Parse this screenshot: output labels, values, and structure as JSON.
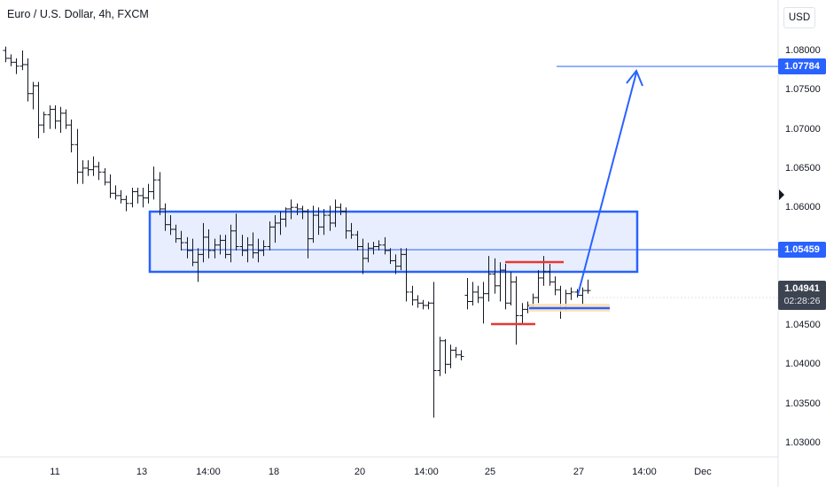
{
  "header": {
    "title": "Euro / U.S. Dollar, 4h, FXCM"
  },
  "price_scale": {
    "currency": "USD",
    "ticks": [
      "1.08000",
      "1.07500",
      "1.07000",
      "1.06500",
      "1.06000",
      "1.05500",
      "1.05000",
      "1.04500",
      "1.04000",
      "1.03500",
      "1.03000"
    ],
    "target_tag": "1.07784",
    "level_tag": "1.05459",
    "current_price": "1.04941",
    "countdown": "02:28:26"
  },
  "time_axis": {
    "labels": [
      "11",
      "13",
      "14:00",
      "18",
      "20",
      "14:00",
      "25",
      "27",
      "14:00",
      "Dec"
    ]
  },
  "colors": {
    "accent": "#2962ff",
    "zone_fill": "#e8eefd",
    "resistance": "#e53935",
    "support_highlight": "#ffe0b2",
    "bars": "#131722"
  },
  "chart_data": {
    "type": "ohlc",
    "symbol": "Euro / U.S. Dollar",
    "timeframe": "4h",
    "source": "FXCM",
    "ylim": [
      1.0298,
      1.082
    ],
    "annotations": {
      "zone": {
        "top": 1.0594,
        "bottom": 1.0526
      },
      "target_line": 1.07784,
      "horizontal_line": 1.05459,
      "red_line_upper": 1.0536,
      "red_line_lower": 1.0452,
      "blue_line_lower": 1.0468,
      "arrow_target": 1.0775
    },
    "ohlc": [
      [
        1.08,
        1.0805,
        1.0785,
        1.079
      ],
      [
        1.079,
        1.0795,
        1.078,
        1.0785
      ],
      [
        1.0785,
        1.079,
        1.077,
        1.078
      ],
      [
        1.078,
        1.08,
        1.0775,
        1.0782
      ],
      [
        1.0782,
        1.079,
        1.0735,
        1.0745
      ],
      [
        1.0745,
        1.076,
        1.0725,
        1.0755
      ],
      [
        1.0755,
        1.076,
        1.0688,
        1.0705
      ],
      [
        1.0705,
        1.0722,
        1.0695,
        1.0718
      ],
      [
        1.0718,
        1.073,
        1.07,
        1.0725
      ],
      [
        1.0725,
        1.073,
        1.07,
        1.071
      ],
      [
        1.071,
        1.0728,
        1.0695,
        1.072
      ],
      [
        1.072,
        1.0725,
        1.07,
        1.0705
      ],
      [
        1.0705,
        1.0712,
        1.067,
        1.068
      ],
      [
        1.068,
        1.07,
        1.063,
        1.0645
      ],
      [
        1.0645,
        1.066,
        1.063,
        1.065
      ],
      [
        1.065,
        1.066,
        1.064,
        1.0648
      ],
      [
        1.0648,
        1.0665,
        1.064,
        1.0652
      ],
      [
        1.0652,
        1.0658,
        1.0635,
        1.0645
      ],
      [
        1.0645,
        1.065,
        1.0628,
        1.0632
      ],
      [
        1.0632,
        1.0642,
        1.0612,
        1.0618
      ],
      [
        1.0618,
        1.0628,
        1.061,
        1.0615
      ],
      [
        1.0615,
        1.0622,
        1.0605,
        1.061
      ],
      [
        1.061,
        1.0615,
        1.0595,
        1.0605
      ],
      [
        1.0605,
        1.0625,
        1.06,
        1.062
      ],
      [
        1.062,
        1.0625,
        1.0605,
        1.0615
      ],
      [
        1.0615,
        1.0625,
        1.06,
        1.0612
      ],
      [
        1.0612,
        1.063,
        1.0605,
        1.062
      ],
      [
        1.062,
        1.0652,
        1.061,
        1.0635
      ],
      [
        1.0635,
        1.0645,
        1.059,
        1.0598
      ],
      [
        1.0598,
        1.0605,
        1.057,
        1.0578
      ],
      [
        1.0578,
        1.059,
        1.0565,
        1.0572
      ],
      [
        1.0572,
        1.0578,
        1.0555,
        1.056
      ],
      [
        1.056,
        1.057,
        1.0545,
        1.0555
      ],
      [
        1.0555,
        1.0562,
        1.0535,
        1.0545
      ],
      [
        1.0545,
        1.056,
        1.0525,
        1.053
      ],
      [
        1.053,
        1.0548,
        1.0505,
        1.054
      ],
      [
        1.054,
        1.058,
        1.053,
        1.0562
      ],
      [
        1.0562,
        1.0572,
        1.0535,
        1.0545
      ],
      [
        1.0545,
        1.056,
        1.0535,
        1.0552
      ],
      [
        1.0552,
        1.0565,
        1.054,
        1.0558
      ],
      [
        1.0558,
        1.0565,
        1.0535,
        1.054
      ],
      [
        1.054,
        1.0578,
        1.053,
        1.057
      ],
      [
        1.057,
        1.0592,
        1.0545,
        1.055
      ],
      [
        1.055,
        1.0565,
        1.0538,
        1.0545
      ],
      [
        1.0545,
        1.0562,
        1.053,
        1.0552
      ],
      [
        1.0552,
        1.0568,
        1.0535,
        1.0542
      ],
      [
        1.0542,
        1.056,
        1.053,
        1.0545
      ],
      [
        1.0545,
        1.0558,
        1.0538,
        1.055
      ],
      [
        1.055,
        1.0582,
        1.0545,
        1.0575
      ],
      [
        1.0575,
        1.059,
        1.0555,
        1.058
      ],
      [
        1.058,
        1.0595,
        1.0565,
        1.0585
      ],
      [
        1.0585,
        1.06,
        1.0575,
        1.0598
      ],
      [
        1.0598,
        1.061,
        1.0585,
        1.06
      ],
      [
        1.06,
        1.0605,
        1.059,
        1.0598
      ],
      [
        1.0598,
        1.0602,
        1.0585,
        1.0595
      ],
      [
        1.0595,
        1.0598,
        1.0535,
        1.056
      ],
      [
        1.056,
        1.0602,
        1.0555,
        1.059
      ],
      [
        1.059,
        1.06,
        1.0565,
        1.0575
      ],
      [
        1.0575,
        1.0598,
        1.0565,
        1.059
      ],
      [
        1.059,
        1.0602,
        1.057,
        1.058
      ],
      [
        1.058,
        1.061,
        1.0575,
        1.06
      ],
      [
        1.06,
        1.0605,
        1.059,
        1.0595
      ],
      [
        1.0595,
        1.06,
        1.056,
        1.057
      ],
      [
        1.057,
        1.058,
        1.056,
        1.0565
      ],
      [
        1.0565,
        1.057,
        1.0545,
        1.055
      ],
      [
        1.055,
        1.056,
        1.0515,
        1.0535
      ],
      [
        1.0535,
        1.0555,
        1.053,
        1.0548
      ],
      [
        1.0548,
        1.0556,
        1.054,
        1.055
      ],
      [
        1.055,
        1.0558,
        1.0545,
        1.0552
      ],
      [
        1.0552,
        1.0562,
        1.054,
        1.0545
      ],
      [
        1.0545,
        1.0548,
        1.0528,
        1.0532
      ],
      [
        1.0532,
        1.054,
        1.0515,
        1.0525
      ],
      [
        1.0525,
        1.0548,
        1.052,
        1.054
      ],
      [
        1.054,
        1.0548,
        1.048,
        1.0492
      ],
      [
        1.0492,
        1.05,
        1.0475,
        1.0482
      ],
      [
        1.0482,
        1.0488,
        1.0472,
        1.0478
      ],
      [
        1.0478,
        1.0482,
        1.047,
        1.0475
      ],
      [
        1.0475,
        1.048,
        1.047,
        1.0478
      ],
      [
        1.0478,
        1.0505,
        1.0332,
        1.0392
      ],
      [
        1.0392,
        1.0435,
        1.0385,
        1.043
      ],
      [
        1.043,
        1.0432,
        1.0388,
        1.04
      ],
      [
        1.04,
        1.0425,
        1.0395,
        1.0418
      ],
      [
        1.0418,
        1.0422,
        1.0408,
        1.0412
      ],
      [
        1.0412,
        1.0418,
        1.0405,
        1.041
      ],
      [
        1.0488,
        1.051,
        1.047,
        1.048
      ],
      [
        1.048,
        1.0505,
        1.0475,
        1.0492
      ],
      [
        1.0492,
        1.05,
        1.0478,
        1.0485
      ],
      [
        1.0485,
        1.0505,
        1.0452,
        1.049
      ],
      [
        1.049,
        1.0538,
        1.048,
        1.0515
      ],
      [
        1.0515,
        1.0535,
        1.049,
        1.05
      ],
      [
        1.05,
        1.053,
        1.048,
        1.052
      ],
      [
        1.052,
        1.0528,
        1.047,
        1.0478
      ],
      [
        1.0478,
        1.0518,
        1.0475,
        1.0505
      ],
      [
        1.0505,
        1.0512,
        1.0425,
        1.0462
      ],
      [
        1.0462,
        1.0478,
        1.0452,
        1.047
      ],
      [
        1.047,
        1.048,
        1.0465,
        1.0475
      ],
      [
        1.0475,
        1.049,
        1.047,
        1.0485
      ],
      [
        1.0485,
        1.052,
        1.0478,
        1.051
      ],
      [
        1.051,
        1.0538,
        1.05,
        1.0518
      ],
      [
        1.0518,
        1.0528,
        1.05,
        1.0505
      ],
      [
        1.0505,
        1.0512,
        1.0488,
        1.0495
      ],
      [
        1.0495,
        1.05,
        1.0458,
        1.0472
      ],
      [
        1.0472,
        1.0495,
        1.0468,
        1.049
      ],
      [
        1.049,
        1.0498,
        1.0482,
        1.0492
      ],
      [
        1.0492,
        1.0496,
        1.0485,
        1.0488
      ],
      [
        1.0488,
        1.0498,
        1.0476,
        1.0494
      ],
      [
        1.0494,
        1.0508,
        1.049,
        1.0494
      ]
    ]
  }
}
